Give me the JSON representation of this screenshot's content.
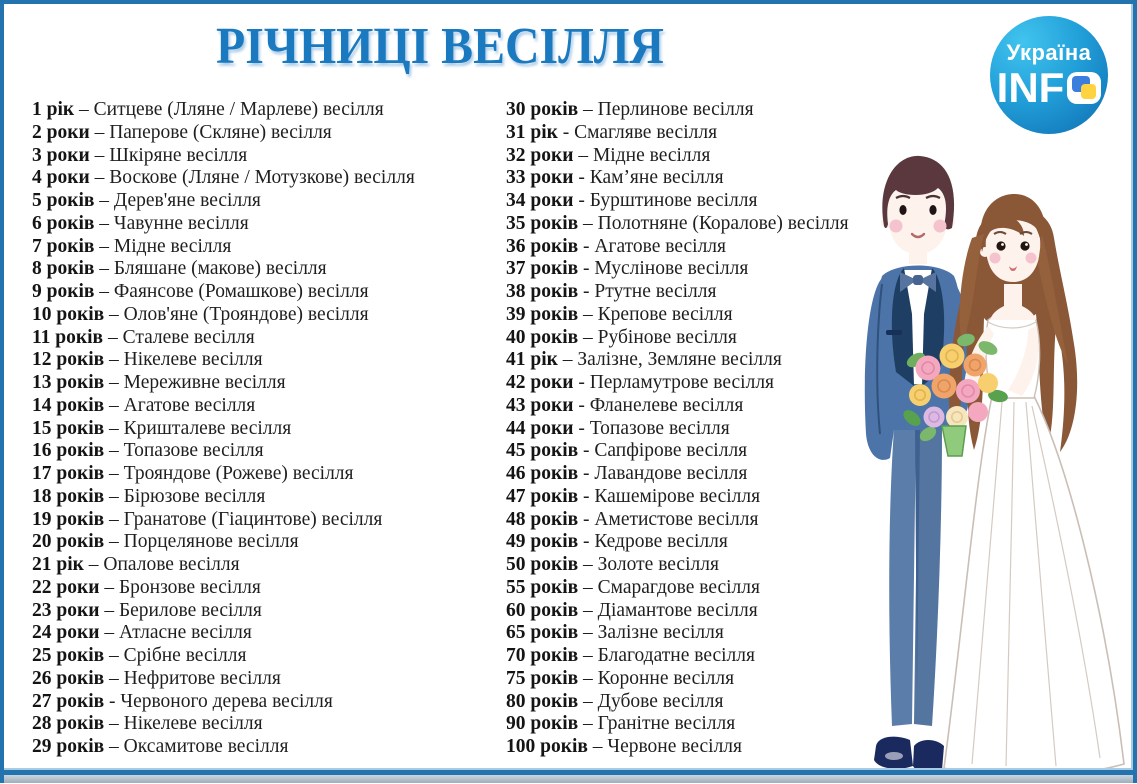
{
  "title": "РІЧНИЦІ ВЕСІЛЛЯ",
  "logo": {
    "line1": "Україна",
    "line2_prefix": "INF",
    "o_icon": "ukraine-flag-squares-icon",
    "colors": {
      "circle_top": "#41c4ee",
      "circle_bottom": "#0e6cb2",
      "square_blue": "#3b7edd",
      "square_yellow": "#ffd23f",
      "text": "#ffffff"
    }
  },
  "list": {
    "left": [
      {
        "label": "1 рік",
        "sep": "–",
        "name": "Ситцеве (Лляне / Марлеве) весілля"
      },
      {
        "label": "2 роки",
        "sep": "–",
        "name": "Паперове (Скляне) весілля"
      },
      {
        "label": "3 роки",
        "sep": "–",
        "name": "Шкіряне весілля"
      },
      {
        "label": "4 роки",
        "sep": "–",
        "name": "Воскове (Лляне / Мотузкове) весілля"
      },
      {
        "label": "5 років",
        "sep": "–",
        "name": "Дерев'яне весілля"
      },
      {
        "label": "6 років",
        "sep": "–",
        "name": "Чавунне весілля"
      },
      {
        "label": "7 років",
        "sep": "–",
        "name": "Мідне весілля"
      },
      {
        "label": "8 років",
        "sep": "–",
        "name": "Бляшане (макове) весілля"
      },
      {
        "label": "9 років",
        "sep": "–",
        "name": "Фаянсове (Ромашкове) весілля"
      },
      {
        "label": "10 років",
        "sep": "–",
        "name": "Олов'яне (Трояндове) весілля"
      },
      {
        "label": "11 років",
        "sep": "–",
        "name": "Сталеве весілля"
      },
      {
        "label": "12 років",
        "sep": "–",
        "name": "Нікелеве весілля"
      },
      {
        "label": "13 років",
        "sep": "–",
        "name": "Мереживне весілля"
      },
      {
        "label": "14 років",
        "sep": "–",
        "name": "Агатове весілля"
      },
      {
        "label": "15 років",
        "sep": "–",
        "name": "Кришталеве весілля"
      },
      {
        "label": "16 років",
        "sep": "–",
        "name": "Топазове весілля"
      },
      {
        "label": "17 років",
        "sep": "–",
        "name": "Трояндове (Рожеве) весілля"
      },
      {
        "label": "18 років",
        "sep": "–",
        "name": "Бірюзове весілля"
      },
      {
        "label": "19 років",
        "sep": "–",
        "name": "Гранатове (Гіацинтове) весілля"
      },
      {
        "label": "20 років",
        "sep": "–",
        "name": "Порцелянове весілля"
      },
      {
        "label": "21 рік",
        "sep": "–",
        "name": "Опалове весілля"
      },
      {
        "label": "22 роки",
        "sep": "–",
        "name": "Бронзове весілля"
      },
      {
        "label": "23 роки",
        "sep": "–",
        "name": "Берилове весілля"
      },
      {
        "label": "24 роки",
        "sep": "–",
        "name": "Атласне весілля"
      },
      {
        "label": "25 років",
        "sep": "–",
        "name": "Срібне весілля"
      },
      {
        "label": "26 років",
        "sep": "–",
        "name": "Нефритове весілля"
      },
      {
        "label": "27 років",
        "sep": "-",
        "name": "Червоного дерева весілля"
      },
      {
        "label": "28 років",
        "sep": "–",
        "name": "Нікелеве весілля"
      },
      {
        "label": "29 років",
        "sep": "–",
        "name": "Оксамитове весілля"
      }
    ],
    "right": [
      {
        "label": "30 років",
        "sep": "–",
        "name": "Перлинове весілля"
      },
      {
        "label": "31 рік",
        "sep": "-",
        "name": "Смагляве весілля"
      },
      {
        "label": "32 роки",
        "sep": "–",
        "name": "Мідне весілля"
      },
      {
        "label": "33 роки",
        "sep": "-",
        "name": "Кам’яне весілля"
      },
      {
        "label": "34 роки",
        "sep": "-",
        "name": "Бурштинове весілля"
      },
      {
        "label": "35 років",
        "sep": "–",
        "name": "Полотняне (Коралове) весілля"
      },
      {
        "label": "36 років",
        "sep": "-",
        "name": "Агатове весілля"
      },
      {
        "label": "37 років",
        "sep": "-",
        "name": "Муслінове весілля"
      },
      {
        "label": "38 років",
        "sep": "-",
        "name": "Ртутне весілля"
      },
      {
        "label": "39 років",
        "sep": "–",
        "name": "Крепове весілля"
      },
      {
        "label": "40 років",
        "sep": "–",
        "name": "Рубінове весілля"
      },
      {
        "label": "41 рік",
        "sep": "–",
        "name": "Залізне, Земляне весілля"
      },
      {
        "label": "42 роки",
        "sep": "-",
        "name": "Перламутрове весілля"
      },
      {
        "label": "43 роки",
        "sep": "-",
        "name": "Фланелеве весілля"
      },
      {
        "label": "44 роки",
        "sep": "-",
        "name": "Топазове весілля"
      },
      {
        "label": "45 років",
        "sep": "-",
        "name": "Сапфірове весілля"
      },
      {
        "label": "46 років",
        "sep": "-",
        "name": "Лавандове весілля"
      },
      {
        "label": "47 років",
        "sep": "-",
        "name": "Кашемірове весілля"
      },
      {
        "label": "48 років",
        "sep": "-",
        "name": "Аметистове весілля"
      },
      {
        "label": "49 років",
        "sep": "-",
        "name": "Кедрове весілля"
      },
      {
        "label": "50 років",
        "sep": "–",
        "name": "Золоте весілля"
      },
      {
        "label": "55 років",
        "sep": "–",
        "name": "Смарагдове весілля"
      },
      {
        "label": "60 років",
        "sep": "–",
        "name": "Діамантове весілля"
      },
      {
        "label": "65 років",
        "sep": "–",
        "name": "Залізне весілля"
      },
      {
        "label": "70 років",
        "sep": "–",
        "name": "Благодатне весілля"
      },
      {
        "label": "75 років",
        "sep": "–",
        "name": "Коронне весілля"
      },
      {
        "label": "80 років",
        "sep": "–",
        "name": "Дубове весілля"
      },
      {
        "label": "90 років",
        "sep": "–",
        "name": "Гранітне весілля"
      },
      {
        "label": "100 років",
        "sep": "–",
        "name": "Червоне весілля"
      }
    ]
  },
  "illustration": {
    "name": "bride-and-groom-cartoon"
  },
  "colors": {
    "border_blue": "#2273ae",
    "title_blue": "#1b79bf",
    "text": "#1f1f1f",
    "footer_gray": "#a8b5c2",
    "suit_blue": "#4c74a9",
    "lapel_navy": "#1e3e63",
    "groom_hair": "#5a383e",
    "bride_hair": "#8a5737",
    "skin": "#fdf3ec"
  }
}
